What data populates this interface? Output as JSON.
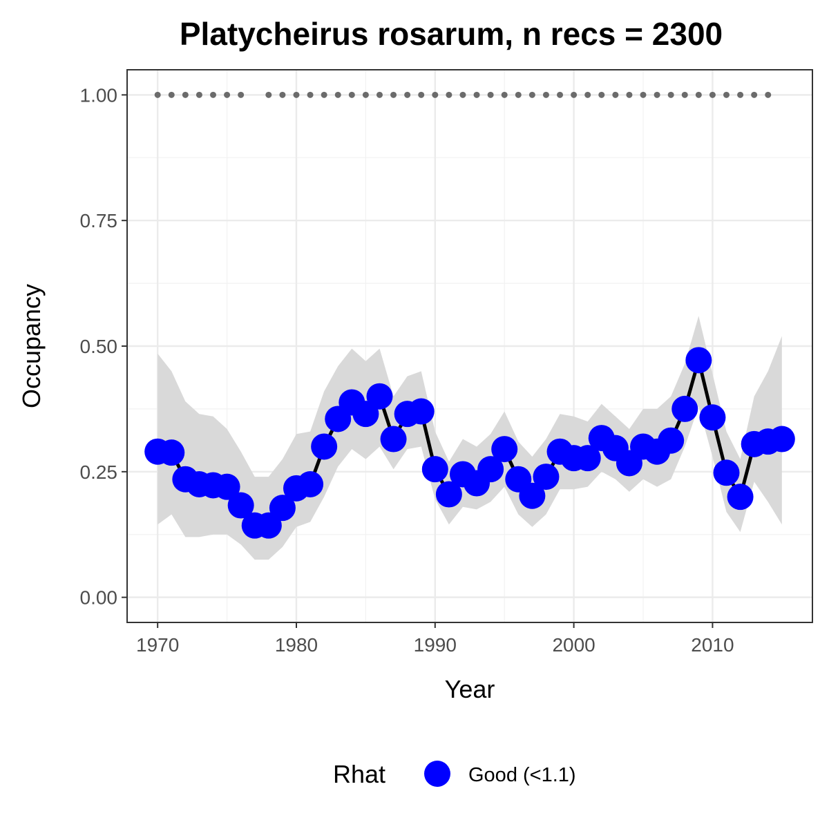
{
  "chart_data": {
    "type": "line",
    "title": "Platycheirus rosarum, n recs = 2300",
    "xlabel": "Year",
    "ylabel": "Occupancy",
    "xlim": [
      1967.8,
      2017.2
    ],
    "ylim": [
      -0.05,
      1.05
    ],
    "x_ticks": [
      1970,
      1980,
      1990,
      2000,
      2010
    ],
    "x_tick_labels": [
      "1970",
      "1980",
      "1990",
      "2000",
      "2010"
    ],
    "y_ticks": [
      0,
      0.25,
      0.5,
      0.75,
      1.0
    ],
    "y_tick_labels": [
      "0.00",
      "0.25",
      "0.50",
      "0.75",
      "1.00"
    ],
    "grid": true,
    "legend": {
      "title": "Rhat",
      "position": "bottom",
      "entries": [
        {
          "label": "Good (<1.1)",
          "color": "#0000ff"
        }
      ]
    },
    "colors": {
      "points": "#0000ff",
      "line": "#000000",
      "ribbon": "#d9d9d9",
      "record_dots": "#6b6b6b"
    },
    "series": [
      {
        "x": [
          1970,
          1971,
          1972,
          1973,
          1974,
          1975,
          1976,
          1977,
          1978,
          1979,
          1980,
          1981,
          1982,
          1983,
          1984,
          1985,
          1986,
          1987,
          1988,
          1989,
          1990,
          1991,
          1992,
          1993,
          1994,
          1995,
          1996,
          1997,
          1998,
          1999,
          2000,
          2001,
          2002,
          2003,
          2004,
          2005,
          2006,
          2007,
          2008,
          2009,
          2010,
          2011,
          2012,
          2013,
          2014,
          2015
        ],
        "y": [
          0.29,
          0.288,
          0.235,
          0.225,
          0.223,
          0.22,
          0.183,
          0.143,
          0.143,
          0.178,
          0.217,
          0.225,
          0.3,
          0.355,
          0.388,
          0.365,
          0.4,
          0.315,
          0.365,
          0.37,
          0.255,
          0.205,
          0.245,
          0.227,
          0.255,
          0.295,
          0.235,
          0.202,
          0.24,
          0.29,
          0.277,
          0.277,
          0.317,
          0.297,
          0.267,
          0.3,
          0.29,
          0.312,
          0.375,
          0.472,
          0.358,
          0.248,
          0.2,
          0.305,
          0.31,
          0.315
        ],
        "lower": [
          0.145,
          0.165,
          0.12,
          0.12,
          0.125,
          0.125,
          0.105,
          0.075,
          0.075,
          0.1,
          0.14,
          0.15,
          0.2,
          0.26,
          0.295,
          0.275,
          0.3,
          0.255,
          0.295,
          0.3,
          0.195,
          0.145,
          0.18,
          0.175,
          0.19,
          0.22,
          0.165,
          0.14,
          0.165,
          0.215,
          0.215,
          0.22,
          0.25,
          0.235,
          0.21,
          0.235,
          0.22,
          0.235,
          0.3,
          0.38,
          0.28,
          0.17,
          0.13,
          0.23,
          0.19,
          0.145
        ],
        "upper": [
          0.485,
          0.45,
          0.39,
          0.365,
          0.36,
          0.335,
          0.29,
          0.24,
          0.24,
          0.275,
          0.325,
          0.33,
          0.41,
          0.46,
          0.495,
          0.47,
          0.495,
          0.4,
          0.44,
          0.45,
          0.33,
          0.27,
          0.315,
          0.3,
          0.325,
          0.37,
          0.31,
          0.28,
          0.315,
          0.365,
          0.36,
          0.35,
          0.385,
          0.36,
          0.335,
          0.375,
          0.375,
          0.4,
          0.465,
          0.56,
          0.445,
          0.33,
          0.275,
          0.4,
          0.45,
          0.52
        ]
      }
    ],
    "record_years": [
      1970,
      1971,
      1972,
      1973,
      1974,
      1975,
      1976,
      1978,
      1979,
      1980,
      1981,
      1982,
      1983,
      1984,
      1985,
      1986,
      1987,
      1988,
      1989,
      1990,
      1991,
      1992,
      1993,
      1994,
      1995,
      1996,
      1997,
      1998,
      1999,
      2000,
      2001,
      2002,
      2003,
      2004,
      2005,
      2006,
      2007,
      2008,
      2009,
      2010,
      2011,
      2012,
      2013,
      2014
    ],
    "record_y": 1.0
  }
}
